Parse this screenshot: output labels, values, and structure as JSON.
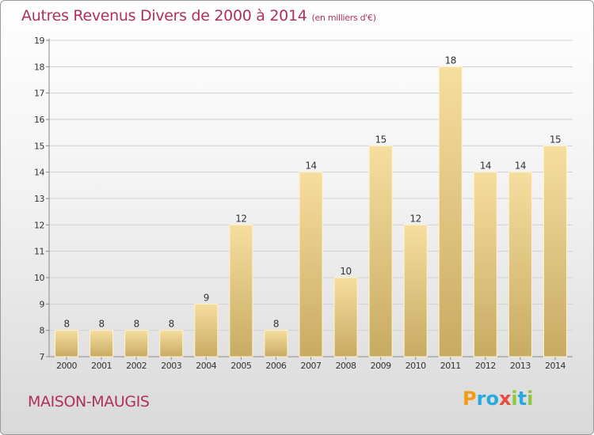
{
  "header": {
    "title": "Autres Revenus Divers de 2000 à 2014",
    "unit": "(en milliers d'€)"
  },
  "footer": {
    "commune": "MAISON-MAUGIS"
  },
  "logo": {
    "letters": [
      "P",
      "r",
      "o",
      "x",
      "i",
      "t",
      "i"
    ],
    "colors": [
      "#f39c12",
      "#27a9e1",
      "#27a9e1",
      "#e74c3c",
      "#8dc63f",
      "#27a9e1",
      "#8dc63f"
    ]
  },
  "chart_data": {
    "type": "bar",
    "categories": [
      "2000",
      "2001",
      "2002",
      "2003",
      "2004",
      "2005",
      "2006",
      "2007",
      "2008",
      "2009",
      "2010",
      "2011",
      "2012",
      "2013",
      "2014"
    ],
    "values": [
      8,
      8,
      8,
      8,
      9,
      12,
      8,
      14,
      10,
      15,
      12,
      18,
      14,
      14,
      15
    ],
    "ylim": [
      7,
      19
    ],
    "yticks": [
      7,
      8,
      9,
      10,
      11,
      12,
      13,
      14,
      15,
      16,
      17,
      18,
      19
    ],
    "grid": true,
    "colors": {
      "bar_light": "#f6dea0",
      "bar_dark": "#c8ab62",
      "grid": "#cfcfcf",
      "text": "#333333"
    }
  }
}
